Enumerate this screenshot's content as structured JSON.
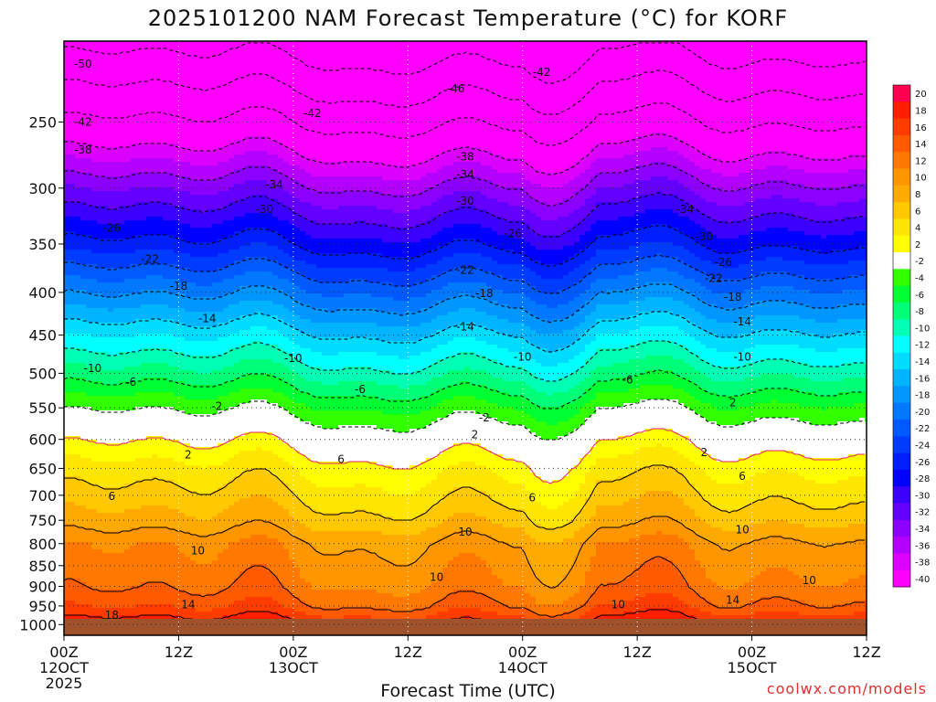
{
  "title": "2025101200 NAM Forecast Temperature (°C) for KORF",
  "credit": "coolwx.com/models",
  "chart_data": {
    "type": "heatmap",
    "title": "2025101200 NAM Forecast Temperature (°C) for KORF",
    "xlabel": "Forecast Time (UTC)",
    "ylabel": "",
    "x_ticks": [
      {
        "hours": 0,
        "lines": [
          "00Z",
          "12OCT",
          "2025"
        ]
      },
      {
        "hours": 12,
        "lines": [
          "12Z"
        ]
      },
      {
        "hours": 24,
        "lines": [
          "00Z",
          "13OCT"
        ]
      },
      {
        "hours": 36,
        "lines": [
          "12Z"
        ]
      },
      {
        "hours": 48,
        "lines": [
          "00Z",
          "14OCT"
        ]
      },
      {
        "hours": 60,
        "lines": [
          "12Z"
        ]
      },
      {
        "hours": 72,
        "lines": [
          "00Z",
          "15OCT"
        ]
      },
      {
        "hours": 84,
        "lines": [
          "12Z"
        ]
      }
    ],
    "xlim_hours": [
      0,
      84
    ],
    "y_ticks": [
      250,
      300,
      350,
      400,
      450,
      500,
      550,
      600,
      650,
      700,
      750,
      800,
      850,
      900,
      950,
      1000
    ],
    "ylim_hpa": [
      1030,
      200
    ],
    "y_scale": "log-pressure",
    "grid": true,
    "colorbar": {
      "levels": [
        20,
        18,
        16,
        14,
        12,
        10,
        8,
        6,
        4,
        2,
        -2,
        -4,
        -6,
        -8,
        -10,
        -12,
        -14,
        -16,
        -18,
        -20,
        -22,
        -24,
        -26,
        -28,
        -30,
        -32,
        -34,
        -36,
        -38,
        -40
      ],
      "colors": [
        "#ff0050",
        "#ff1e00",
        "#ff3c00",
        "#ff5a00",
        "#ff7800",
        "#ff9600",
        "#ffaa00",
        "#ffc800",
        "#ffe600",
        "#ffff00",
        "#ffffff",
        "#32ff00",
        "#00ff32",
        "#00ff78",
        "#00ffb4",
        "#00ffff",
        "#00dcff",
        "#00b4ff",
        "#0096ff",
        "#0078ff",
        "#005aff",
        "#003cff",
        "#001eff",
        "#0000ff",
        "#3c00ff",
        "#6400ff",
        "#8c00ff",
        "#b400ff",
        "#dc00ff",
        "#ff00ff"
      ]
    },
    "temperature_profile": [
      {
        "hpa": 1000,
        "t": 19
      },
      {
        "hpa": 950,
        "t": 15
      },
      {
        "hpa": 900,
        "t": 13
      },
      {
        "hpa": 850,
        "t": 12
      },
      {
        "hpa": 800,
        "t": 11
      },
      {
        "hpa": 750,
        "t": 8
      },
      {
        "hpa": 700,
        "t": 6
      },
      {
        "hpa": 650,
        "t": 4
      },
      {
        "hpa": 600,
        "t": 1
      },
      {
        "hpa": 550,
        "t": -3
      },
      {
        "hpa": 500,
        "t": -8
      },
      {
        "hpa": 450,
        "t": -13
      },
      {
        "hpa": 400,
        "t": -19
      },
      {
        "hpa": 350,
        "t": -26
      },
      {
        "hpa": 300,
        "t": -33
      },
      {
        "hpa": 250,
        "t": -42
      },
      {
        "hpa": 200,
        "t": -52
      }
    ],
    "contour_labels": [
      {
        "hours": 2,
        "hpa": 213,
        "text": "-50"
      },
      {
        "hours": 2,
        "hpa": 250,
        "text": "-42"
      },
      {
        "hours": 2,
        "hpa": 270,
        "text": "-38"
      },
      {
        "hours": 5,
        "hpa": 335,
        "text": "-26"
      },
      {
        "hours": 9,
        "hpa": 365,
        "text": "-22"
      },
      {
        "hours": 12,
        "hpa": 393,
        "text": "-18"
      },
      {
        "hours": 15,
        "hpa": 430,
        "text": "-14"
      },
      {
        "hours": 3,
        "hpa": 493,
        "text": "-10"
      },
      {
        "hours": 7,
        "hpa": 512,
        "text": "-6"
      },
      {
        "hours": 16,
        "hpa": 548,
        "text": "-2"
      },
      {
        "hours": 13,
        "hpa": 626,
        "text": "2"
      },
      {
        "hours": 5,
        "hpa": 702,
        "text": "6"
      },
      {
        "hours": 14,
        "hpa": 816,
        "text": "10"
      },
      {
        "hours": 13,
        "hpa": 946,
        "text": "14"
      },
      {
        "hours": 5,
        "hpa": 975,
        "text": "18"
      },
      {
        "hours": 22,
        "hpa": 297,
        "text": "-34"
      },
      {
        "hours": 21,
        "hpa": 318,
        "text": "-30"
      },
      {
        "hours": 26,
        "hpa": 244,
        "text": "-42"
      },
      {
        "hours": 24,
        "hpa": 480,
        "text": "-10"
      },
      {
        "hours": 31,
        "hpa": 523,
        "text": "-6"
      },
      {
        "hours": 29,
        "hpa": 634,
        "text": "6"
      },
      {
        "hours": 41,
        "hpa": 228,
        "text": "-46"
      },
      {
        "hours": 42,
        "hpa": 275,
        "text": "-38"
      },
      {
        "hours": 42,
        "hpa": 289,
        "text": "-34"
      },
      {
        "hours": 42,
        "hpa": 311,
        "text": "-30"
      },
      {
        "hours": 42,
        "hpa": 376,
        "text": "-22"
      },
      {
        "hours": 44,
        "hpa": 401,
        "text": "-18"
      },
      {
        "hours": 42,
        "hpa": 440,
        "text": "-14"
      },
      {
        "hours": 44,
        "hpa": 565,
        "text": "-2"
      },
      {
        "hours": 43,
        "hpa": 592,
        "text": "2"
      },
      {
        "hours": 42,
        "hpa": 775,
        "text": "10"
      },
      {
        "hours": 39,
        "hpa": 878,
        "text": "10"
      },
      {
        "hours": 50,
        "hpa": 218,
        "text": "-42"
      },
      {
        "hours": 47,
        "hpa": 340,
        "text": "-26"
      },
      {
        "hours": 48,
        "hpa": 478,
        "text": "-10"
      },
      {
        "hours": 49,
        "hpa": 705,
        "text": "6"
      },
      {
        "hours": 58,
        "hpa": 946,
        "text": "10"
      },
      {
        "hours": 59,
        "hpa": 509,
        "text": "-6"
      },
      {
        "hours": 65,
        "hpa": 318,
        "text": "-34"
      },
      {
        "hours": 67,
        "hpa": 343,
        "text": "-30"
      },
      {
        "hours": 69,
        "hpa": 368,
        "text": "-26"
      },
      {
        "hours": 68,
        "hpa": 385,
        "text": "-22"
      },
      {
        "hours": 70,
        "hpa": 405,
        "text": "-18"
      },
      {
        "hours": 71,
        "hpa": 434,
        "text": "-14"
      },
      {
        "hours": 71,
        "hpa": 478,
        "text": "-10"
      },
      {
        "hours": 70,
        "hpa": 542,
        "text": "2"
      },
      {
        "hours": 67,
        "hpa": 622,
        "text": "2"
      },
      {
        "hours": 71,
        "hpa": 664,
        "text": "6"
      },
      {
        "hours": 71,
        "hpa": 770,
        "text": "10"
      },
      {
        "hours": 78,
        "hpa": 885,
        "text": "10"
      },
      {
        "hours": 70,
        "hpa": 935,
        "text": "14"
      }
    ]
  }
}
